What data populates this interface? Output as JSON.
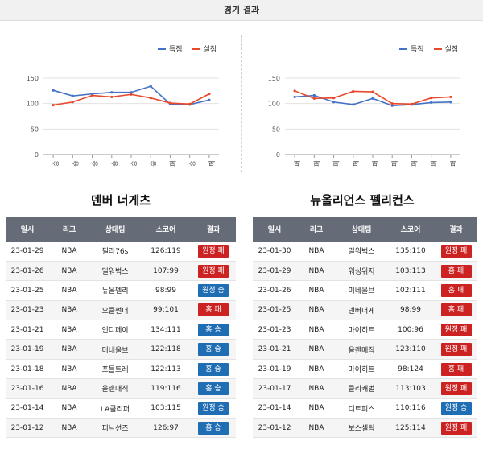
{
  "page_title": "경기 결과",
  "legend": {
    "scored": "득점",
    "allowed": "실점"
  },
  "colors": {
    "scored": "#4472c4",
    "allowed": "#e8492d",
    "win": "#1f6eb3",
    "loss": "#cc2222",
    "header": "#656c78"
  },
  "table_headers": [
    "일시",
    "리그",
    "상대팀",
    "스코어",
    "결과"
  ],
  "chart_data": [
    {
      "type": "line",
      "categories": [
        "승",
        "승",
        "승",
        "승",
        "승",
        "승",
        "패",
        "승",
        "패"
      ],
      "yticks": [
        0,
        50,
        100,
        150
      ],
      "ylim": [
        0,
        150
      ],
      "series": [
        {
          "name": "득점",
          "values": [
            126,
            115,
            119,
            122,
            122,
            134,
            99,
            98,
            107
          ]
        },
        {
          "name": "실점",
          "values": [
            97,
            103,
            116,
            113,
            118,
            111,
            101,
            99,
            119
          ]
        }
      ]
    },
    {
      "type": "line",
      "categories": [
        "패",
        "패",
        "패",
        "패",
        "패",
        "패",
        "패",
        "패",
        "패"
      ],
      "yticks": [
        0,
        50,
        100,
        150
      ],
      "ylim": [
        0,
        150
      ],
      "series": [
        {
          "name": "득점",
          "values": [
            113,
            116,
            103,
            98,
            110,
            96,
            98,
            102,
            103
          ]
        },
        {
          "name": "실점",
          "values": [
            125,
            110,
            111,
            124,
            123,
            100,
            99,
            111,
            113
          ]
        }
      ]
    }
  ],
  "teams": [
    {
      "name": "덴버 너게츠",
      "games": [
        {
          "date": "23-01-29",
          "league": "NBA",
          "opponent": "필라76s",
          "score": "126:119",
          "result": "원정 패",
          "kind": "loss"
        },
        {
          "date": "23-01-26",
          "league": "NBA",
          "opponent": "밀워벅스",
          "score": "107:99",
          "result": "원정 패",
          "kind": "loss"
        },
        {
          "date": "23-01-25",
          "league": "NBA",
          "opponent": "뉴올펠리",
          "score": "98:99",
          "result": "원정 승",
          "kind": "win"
        },
        {
          "date": "23-01-23",
          "league": "NBA",
          "opponent": "오클썬더",
          "score": "99:101",
          "result": "홈 패",
          "kind": "loss"
        },
        {
          "date": "23-01-21",
          "league": "NBA",
          "opponent": "인디페이",
          "score": "134:111",
          "result": "홈 승",
          "kind": "win"
        },
        {
          "date": "23-01-19",
          "league": "NBA",
          "opponent": "미네울브",
          "score": "122:118",
          "result": "홈 승",
          "kind": "win"
        },
        {
          "date": "23-01-18",
          "league": "NBA",
          "opponent": "포틀트레",
          "score": "122:113",
          "result": "홈 승",
          "kind": "win"
        },
        {
          "date": "23-01-16",
          "league": "NBA",
          "opponent": "올랜매직",
          "score": "119:116",
          "result": "홈 승",
          "kind": "win"
        },
        {
          "date": "23-01-14",
          "league": "NBA",
          "opponent": "LA클리퍼",
          "score": "103:115",
          "result": "원정 승",
          "kind": "win"
        },
        {
          "date": "23-01-12",
          "league": "NBA",
          "opponent": "피닉선즈",
          "score": "126:97",
          "result": "홈 승",
          "kind": "win"
        }
      ]
    },
    {
      "name": "뉴올리언스 펠리컨스",
      "games": [
        {
          "date": "23-01-30",
          "league": "NBA",
          "opponent": "밀워벅스",
          "score": "135:110",
          "result": "원정 패",
          "kind": "loss"
        },
        {
          "date": "23-01-29",
          "league": "NBA",
          "opponent": "워싱위저",
          "score": "103:113",
          "result": "홈 패",
          "kind": "loss"
        },
        {
          "date": "23-01-26",
          "league": "NBA",
          "opponent": "미네울브",
          "score": "102:111",
          "result": "홈 패",
          "kind": "loss"
        },
        {
          "date": "23-01-25",
          "league": "NBA",
          "opponent": "덴버너게",
          "score": "98:99",
          "result": "홈 패",
          "kind": "loss"
        },
        {
          "date": "23-01-23",
          "league": "NBA",
          "opponent": "마이히트",
          "score": "100:96",
          "result": "원정 패",
          "kind": "loss"
        },
        {
          "date": "23-01-21",
          "league": "NBA",
          "opponent": "올랜매직",
          "score": "123:110",
          "result": "원정 패",
          "kind": "loss"
        },
        {
          "date": "23-01-19",
          "league": "NBA",
          "opponent": "마이히트",
          "score": "98:124",
          "result": "홈 패",
          "kind": "loss"
        },
        {
          "date": "23-01-17",
          "league": "NBA",
          "opponent": "클리캐벌",
          "score": "113:103",
          "result": "원정 패",
          "kind": "loss"
        },
        {
          "date": "23-01-14",
          "league": "NBA",
          "opponent": "디트피스",
          "score": "110:116",
          "result": "원정 승",
          "kind": "win"
        },
        {
          "date": "23-01-12",
          "league": "NBA",
          "opponent": "보스셀틱",
          "score": "125:114",
          "result": "원정 패",
          "kind": "loss"
        }
      ]
    }
  ]
}
